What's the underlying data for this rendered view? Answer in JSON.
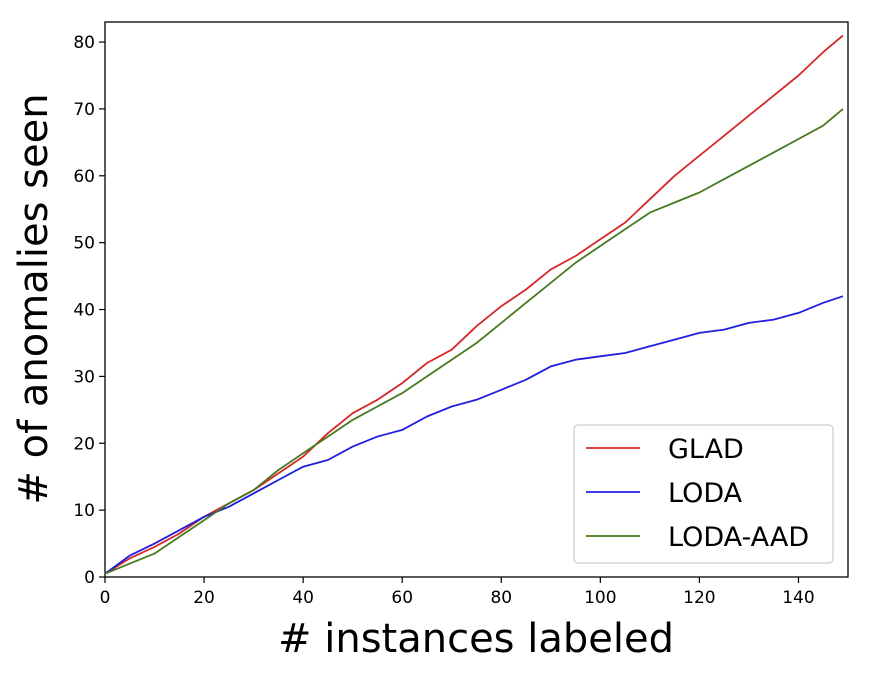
{
  "chart_data": {
    "type": "line",
    "title": "",
    "xlabel": "# instances labeled",
    "ylabel": "# of anomalies seen",
    "xlim": [
      0,
      150
    ],
    "ylim": [
      0,
      83
    ],
    "xticks": [
      "0",
      "20",
      "40",
      "60",
      "80",
      "100",
      "120",
      "140"
    ],
    "yticks": [
      "0",
      "10",
      "20",
      "30",
      "40",
      "50",
      "60",
      "70",
      "80"
    ],
    "grid": false,
    "legend_position": "lower-right",
    "x": [
      0,
      5,
      10,
      15,
      20,
      25,
      30,
      35,
      40,
      45,
      50,
      55,
      60,
      65,
      70,
      75,
      80,
      85,
      90,
      95,
      100,
      105,
      110,
      115,
      120,
      125,
      130,
      135,
      140,
      145,
      149
    ],
    "series": [
      {
        "name": "GLAD",
        "color": "#d62728",
        "values": [
          0.5,
          2.8,
          4.5,
          6.5,
          9.0,
          11.0,
          13.0,
          15.5,
          18.0,
          21.5,
          24.5,
          26.5,
          29.0,
          32.0,
          34.0,
          37.5,
          40.5,
          43.0,
          46.0,
          48.0,
          50.5,
          53.0,
          56.5,
          60.0,
          63.0,
          66.0,
          69.0,
          72.0,
          75.0,
          78.5,
          81.0
        ]
      },
      {
        "name": "LODA",
        "color": "#1f1fe0",
        "values": [
          0.5,
          3.2,
          5.0,
          7.0,
          9.0,
          10.5,
          12.5,
          14.5,
          16.5,
          17.5,
          19.5,
          21.0,
          22.0,
          24.0,
          25.5,
          26.5,
          28.0,
          29.5,
          31.5,
          32.5,
          33.0,
          33.5,
          34.5,
          35.5,
          36.5,
          37.0,
          38.0,
          38.5,
          39.5,
          41.0,
          42.0
        ]
      },
      {
        "name": "LODA-AAD",
        "color": "#4a7a1f",
        "values": [
          0.5,
          2.0,
          3.5,
          6.0,
          8.5,
          11.0,
          13.0,
          16.0,
          18.5,
          21.0,
          23.5,
          25.5,
          27.5,
          30.0,
          32.5,
          35.0,
          38.0,
          41.0,
          44.0,
          47.0,
          49.5,
          52.0,
          54.5,
          56.0,
          57.5,
          59.5,
          61.5,
          63.5,
          65.5,
          67.5,
          70.0
        ]
      }
    ]
  }
}
